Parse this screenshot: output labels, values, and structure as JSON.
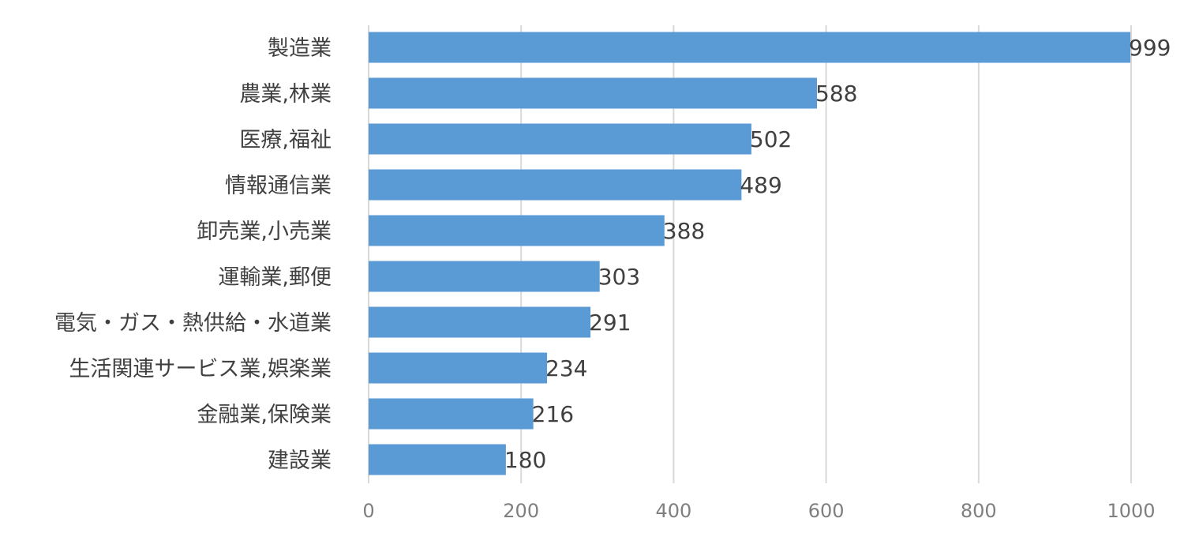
{
  "chart_data": {
    "type": "bar",
    "orientation": "horizontal",
    "categories": [
      "製造業",
      "農業,林業",
      "医療,福祉",
      "情報通信業",
      "卸売業,小売業",
      "運輸業,郵便",
      "電気・ガス・熱供給・水道業",
      "生活関連サービス業,娯楽業",
      "金融業,保険業",
      "建設業"
    ],
    "values": [
      999,
      588,
      502,
      489,
      388,
      303,
      291,
      234,
      216,
      180
    ],
    "xlim": [
      0,
      1000
    ],
    "xticks": [
      0,
      200,
      400,
      600,
      800,
      1000
    ],
    "xtick_labels": [
      "0",
      "200",
      "400",
      "600",
      "800",
      "1000"
    ],
    "grid": true,
    "legend": "none",
    "bar_color": "#5b9bd5",
    "title": "",
    "xlabel": "",
    "ylabel": ""
  }
}
